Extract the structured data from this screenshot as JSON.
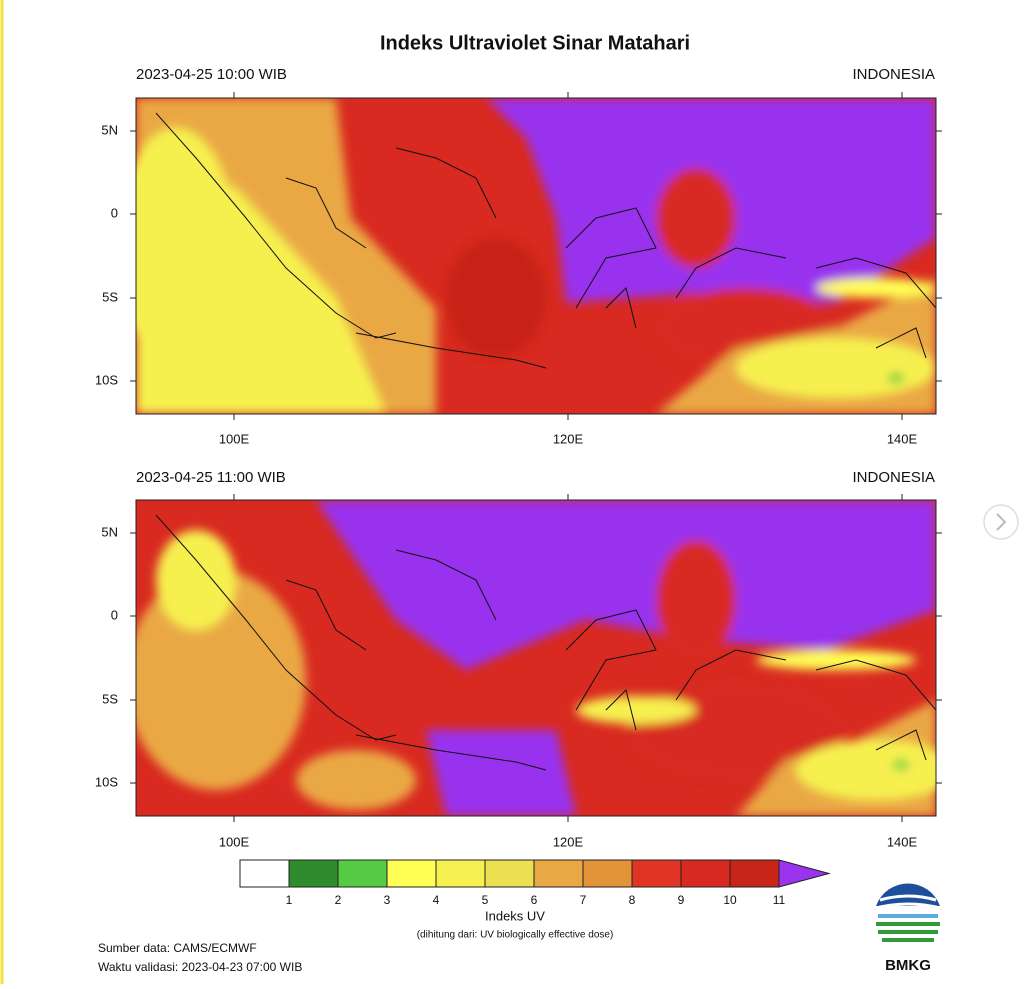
{
  "title": "Indeks Ultraviolet Sinar Matahari",
  "panels": [
    {
      "time": "2023-04-25  10:00 WIB",
      "region": "INDONESIA"
    },
    {
      "time": "2023-04-25  11:00 WIB",
      "region": "INDONESIA"
    }
  ],
  "lat_labels": [
    "5N",
    "0",
    "5S",
    "10S"
  ],
  "lon_labels": [
    "100E",
    "120E",
    "140E"
  ],
  "colorbar": {
    "title": "Indeks UV",
    "subtitle": "(dihitung dari: UV biologically effective dose)",
    "ticks": [
      "1",
      "2",
      "3",
      "4",
      "5",
      "6",
      "7",
      "8",
      "9",
      "10",
      "11"
    ],
    "colors": [
      "#ffffff",
      "#2e8b2e",
      "#55cc44",
      "#ffff55",
      "#f6f050",
      "#ece050",
      "#eaa844",
      "#e39438",
      "#e23424",
      "#d82a20",
      "#c82418",
      "#9933ee"
    ]
  },
  "source": "Sumber data: CAMS/ECMWF",
  "validity": "Waktu validasi: 2023-04-23 07:00 WIB",
  "logo": "BMKG"
}
